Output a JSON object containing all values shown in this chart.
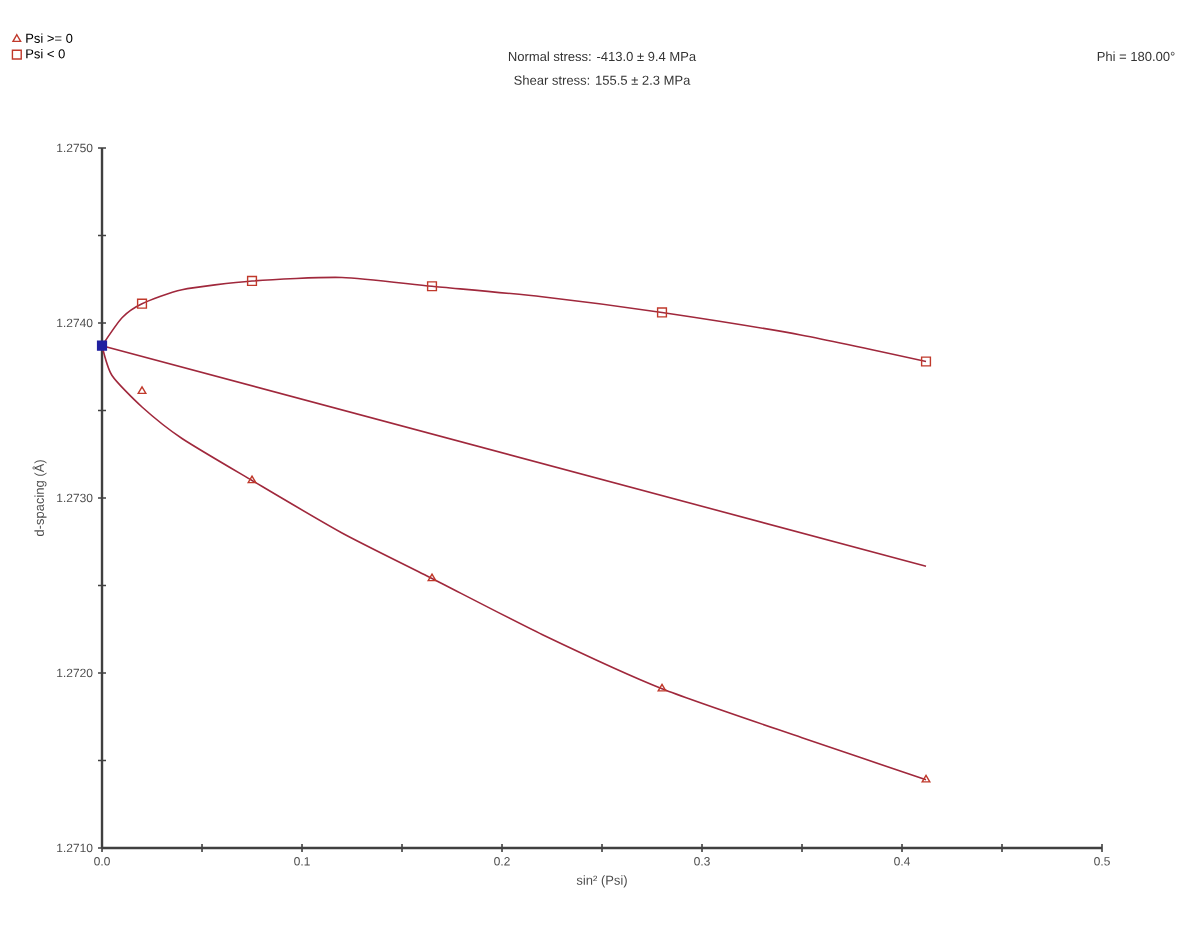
{
  "chart_data": {
    "type": "scatter",
    "title": "Normal stress: -413.0 ± 9.4 MPa",
    "subtitle": "Shear stress: 155.5 ± 2.3 MPa",
    "annotations": [
      "Phi = 180.00°"
    ],
    "xlabel": "sin² (Psi)",
    "ylabel": "d-spacing (Å)",
    "xlim": [
      0,
      0.5
    ],
    "ylim": [
      1.271,
      1.275
    ],
    "xticks": [
      {
        "value": 0,
        "label": "0.0"
      },
      0.1,
      0.2,
      0.3,
      0.4,
      0.5
    ],
    "yticks": [
      {
        "value": 1.271,
        "label": "1.2710"
      },
      {
        "value": 1.272,
        "label": "1.2720"
      },
      {
        "value": 1.273,
        "label": "1.2730"
      },
      {
        "value": 1.274,
        "label": "1.2740"
      },
      {
        "value": 1.275,
        "label": "1.2750"
      }
    ],
    "legend": "top left",
    "series": [
      {
        "name": "Psi >= 0",
        "marker": "triangle",
        "color": "#c0392b",
        "x": [
          0.02,
          0.075,
          0.165,
          0.28,
          0.412
        ],
        "values": [
          1.27361,
          1.2731,
          1.27254,
          1.27191,
          1.27139
        ]
      },
      {
        "name": "Psi < 0",
        "marker": "square",
        "color": "#c0392b",
        "x": [
          0.02,
          0.075,
          0.165,
          0.28,
          0.412
        ],
        "values": [
          1.27411,
          1.27424,
          1.27421,
          1.27406,
          1.27378
        ]
      },
      {
        "marker": "square",
        "color": "#2020a0",
        "x": [
          0
        ],
        "values": [
          1.27387
        ]
      },
      {
        "type": "line",
        "color": "#a0283c",
        "x": [
          0,
          0.01,
          0.02,
          0.04,
          0.075,
          0.12,
          0.165,
          0.22,
          0.28,
          0.35,
          0.412
        ],
        "values": [
          1.27387,
          1.27403,
          1.27411,
          1.27419,
          1.27424,
          1.27426,
          1.27421,
          1.27415,
          1.27406,
          1.27393,
          1.27378
        ]
      },
      {
        "type": "line",
        "color": "#a0283c",
        "x": [
          0,
          0.412
        ],
        "values": [
          1.27387,
          1.27261
        ]
      },
      {
        "type": "line",
        "color": "#a0283c",
        "x": [
          0,
          0.005,
          0.02,
          0.04,
          0.075,
          0.12,
          0.165,
          0.22,
          0.28,
          0.35,
          0.412
        ],
        "values": [
          1.27387,
          1.2737,
          1.27352,
          1.27334,
          1.2731,
          1.2728,
          1.27254,
          1.27222,
          1.27191,
          1.27163,
          1.27139
        ]
      }
    ]
  }
}
